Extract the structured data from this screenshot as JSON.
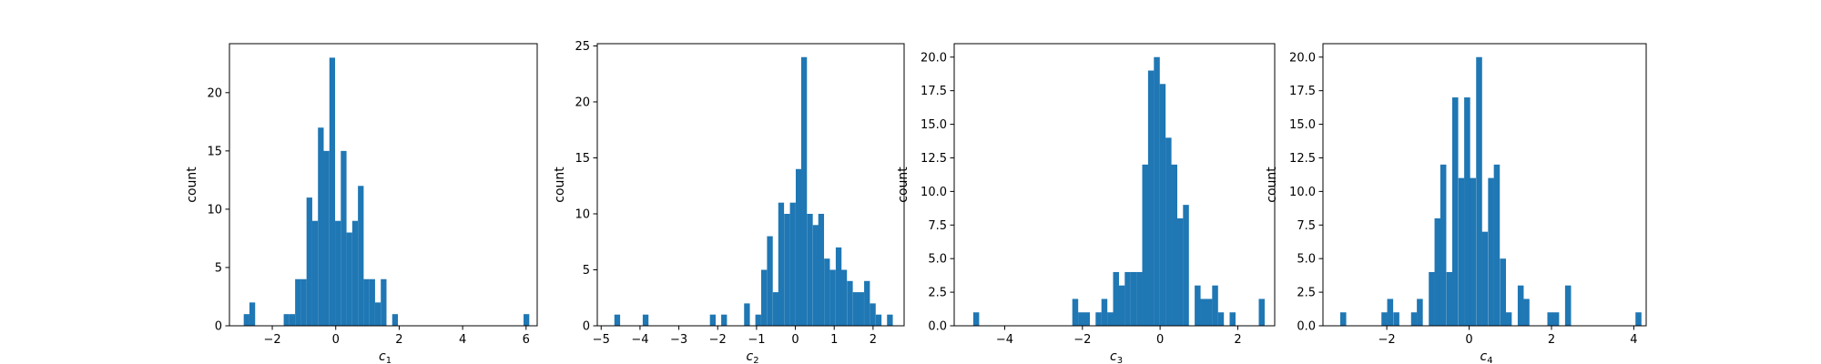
{
  "chart_data": [
    {
      "type": "bar",
      "subtype": "histogram",
      "xlabel": "c",
      "xlabel_subscript": "1",
      "ylabel": "count",
      "xlim": [
        -3.35,
        6.35
      ],
      "ylim": [
        0,
        24.2
      ],
      "xticks": [
        -2,
        0,
        2,
        4,
        6
      ],
      "xtick_labels": [
        "−2",
        "0",
        "2",
        "4",
        "6"
      ],
      "yticks": [
        0,
        5,
        10,
        15,
        20
      ],
      "ytick_labels": [
        "0",
        "5",
        "10",
        "15",
        "20"
      ],
      "bin_width": 0.18,
      "bins": [
        {
          "x": -2.9,
          "count": 1
        },
        {
          "x": -2.72,
          "count": 2
        },
        {
          "x": -1.64,
          "count": 1
        },
        {
          "x": -1.46,
          "count": 1
        },
        {
          "x": -1.28,
          "count": 4
        },
        {
          "x": -1.1,
          "count": 4
        },
        {
          "x": -0.92,
          "count": 11
        },
        {
          "x": -0.74,
          "count": 9
        },
        {
          "x": -0.56,
          "count": 17
        },
        {
          "x": -0.38,
          "count": 15
        },
        {
          "x": -0.2,
          "count": 23
        },
        {
          "x": -0.02,
          "count": 9
        },
        {
          "x": 0.16,
          "count": 15
        },
        {
          "x": 0.34,
          "count": 8
        },
        {
          "x": 0.52,
          "count": 9
        },
        {
          "x": 0.7,
          "count": 12
        },
        {
          "x": 0.88,
          "count": 4
        },
        {
          "x": 1.06,
          "count": 4
        },
        {
          "x": 1.24,
          "count": 2
        },
        {
          "x": 1.42,
          "count": 4
        },
        {
          "x": 1.78,
          "count": 1
        },
        {
          "x": 5.92,
          "count": 1
        }
      ]
    },
    {
      "type": "bar",
      "subtype": "histogram",
      "xlabel": "c",
      "xlabel_subscript": "2",
      "ylabel": "count",
      "xlim": [
        -5.1,
        2.8
      ],
      "ylim": [
        0,
        25.2
      ],
      "xticks": [
        -5,
        -4,
        -3,
        -2,
        -1,
        0,
        1,
        2
      ],
      "xtick_labels": [
        "−5",
        "−4",
        "−3",
        "−2",
        "−1",
        "0",
        "1",
        "2"
      ],
      "yticks": [
        0,
        5,
        10,
        15,
        20,
        25
      ],
      "ytick_labels": [
        "0",
        "5",
        "10",
        "15",
        "20",
        "25"
      ],
      "bin_width": 0.148,
      "bins": [
        {
          "x": -4.66,
          "count": 1
        },
        {
          "x": -3.93,
          "count": 1
        },
        {
          "x": -2.2,
          "count": 1
        },
        {
          "x": -1.91,
          "count": 1
        },
        {
          "x": -1.32,
          "count": 2
        },
        {
          "x": -1.03,
          "count": 1
        },
        {
          "x": -0.88,
          "count": 5
        },
        {
          "x": -0.73,
          "count": 8
        },
        {
          "x": -0.58,
          "count": 3
        },
        {
          "x": -0.44,
          "count": 11
        },
        {
          "x": -0.29,
          "count": 10
        },
        {
          "x": -0.14,
          "count": 11
        },
        {
          "x": 0.01,
          "count": 14
        },
        {
          "x": 0.15,
          "count": 24
        },
        {
          "x": 0.3,
          "count": 10
        },
        {
          "x": 0.45,
          "count": 9
        },
        {
          "x": 0.59,
          "count": 10
        },
        {
          "x": 0.74,
          "count": 6
        },
        {
          "x": 0.89,
          "count": 5
        },
        {
          "x": 1.04,
          "count": 7
        },
        {
          "x": 1.18,
          "count": 5
        },
        {
          "x": 1.33,
          "count": 4
        },
        {
          "x": 1.48,
          "count": 3
        },
        {
          "x": 1.62,
          "count": 3
        },
        {
          "x": 1.77,
          "count": 4
        },
        {
          "x": 1.92,
          "count": 2
        },
        {
          "x": 2.07,
          "count": 1
        },
        {
          "x": 2.36,
          "count": 1
        }
      ]
    },
    {
      "type": "bar",
      "subtype": "histogram",
      "xlabel": "c",
      "xlabel_subscript": "3",
      "ylabel": "count",
      "xlim": [
        -5.3,
        2.95
      ],
      "ylim": [
        0,
        21
      ],
      "xticks": [
        -4,
        -2,
        0,
        2
      ],
      "xtick_labels": [
        "−4",
        "−2",
        "0",
        "2"
      ],
      "yticks": [
        0,
        2.5,
        5,
        7.5,
        10,
        12.5,
        15,
        17.5,
        20
      ],
      "ytick_labels": [
        "0.0",
        "2.5",
        "5.0",
        "7.5",
        "10.0",
        "12.5",
        "15.0",
        "17.5",
        "20.0"
      ],
      "bin_width": 0.152,
      "bins": [
        {
          "x": -4.81,
          "count": 1
        },
        {
          "x": -2.26,
          "count": 2
        },
        {
          "x": -2.11,
          "count": 1
        },
        {
          "x": -1.96,
          "count": 1
        },
        {
          "x": -1.66,
          "count": 1
        },
        {
          "x": -1.51,
          "count": 2
        },
        {
          "x": -1.36,
          "count": 1
        },
        {
          "x": -1.21,
          "count": 4
        },
        {
          "x": -1.06,
          "count": 3
        },
        {
          "x": -0.91,
          "count": 4
        },
        {
          "x": -0.76,
          "count": 4
        },
        {
          "x": -0.61,
          "count": 4
        },
        {
          "x": -0.46,
          "count": 12
        },
        {
          "x": -0.31,
          "count": 19
        },
        {
          "x": -0.16,
          "count": 20
        },
        {
          "x": -0.01,
          "count": 18
        },
        {
          "x": 0.14,
          "count": 14
        },
        {
          "x": 0.29,
          "count": 12
        },
        {
          "x": 0.44,
          "count": 8
        },
        {
          "x": 0.59,
          "count": 9
        },
        {
          "x": 0.89,
          "count": 3
        },
        {
          "x": 1.04,
          "count": 2
        },
        {
          "x": 1.19,
          "count": 2
        },
        {
          "x": 1.34,
          "count": 3
        },
        {
          "x": 1.49,
          "count": 1
        },
        {
          "x": 1.79,
          "count": 1
        },
        {
          "x": 2.54,
          "count": 2
        }
      ]
    },
    {
      "type": "bar",
      "subtype": "histogram",
      "xlabel": "c",
      "xlabel_subscript": "4",
      "ylabel": "count",
      "xlim": [
        -3.55,
        4.3
      ],
      "ylim": [
        0,
        21
      ],
      "xticks": [
        -2,
        0,
        2,
        4
      ],
      "xtick_labels": [
        "−2",
        "0",
        "2",
        "4"
      ],
      "yticks": [
        0,
        2.5,
        5,
        7.5,
        10,
        12.5,
        15,
        17.5,
        20
      ],
      "ytick_labels": [
        "0.0",
        "2.5",
        "5.0",
        "7.5",
        "10.0",
        "12.5",
        "15.0",
        "17.5",
        "20.0"
      ],
      "bin_width": 0.145,
      "bins": [
        {
          "x": -3.13,
          "count": 1
        },
        {
          "x": -2.13,
          "count": 1
        },
        {
          "x": -1.99,
          "count": 2
        },
        {
          "x": -1.84,
          "count": 1
        },
        {
          "x": -1.41,
          "count": 1
        },
        {
          "x": -1.27,
          "count": 2
        },
        {
          "x": -0.98,
          "count": 4
        },
        {
          "x": -0.84,
          "count": 8
        },
        {
          "x": -0.7,
          "count": 12
        },
        {
          "x": -0.55,
          "count": 4
        },
        {
          "x": -0.41,
          "count": 17
        },
        {
          "x": -0.26,
          "count": 11
        },
        {
          "x": -0.12,
          "count": 17
        },
        {
          "x": 0.02,
          "count": 11
        },
        {
          "x": 0.17,
          "count": 20
        },
        {
          "x": 0.31,
          "count": 7
        },
        {
          "x": 0.46,
          "count": 11
        },
        {
          "x": 0.6,
          "count": 12
        },
        {
          "x": 0.75,
          "count": 5
        },
        {
          "x": 0.89,
          "count": 1
        },
        {
          "x": 1.18,
          "count": 3
        },
        {
          "x": 1.32,
          "count": 2
        },
        {
          "x": 1.9,
          "count": 1
        },
        {
          "x": 2.04,
          "count": 1
        },
        {
          "x": 2.33,
          "count": 3
        },
        {
          "x": 4.04,
          "count": 1
        }
      ]
    }
  ],
  "colors": {
    "bar": "#1f77b4",
    "axis": "#000000",
    "background": "#ffffff"
  }
}
